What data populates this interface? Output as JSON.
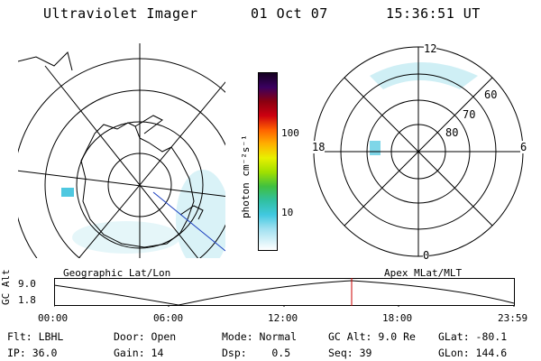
{
  "header": {
    "title": "Ultraviolet Imager",
    "date": "01 Oct 07",
    "time": "15:36:51 UT"
  },
  "colorbar": {
    "unit_label": "photon cm⁻²s⁻¹",
    "ticks": [
      "100",
      "10"
    ]
  },
  "right_map": {
    "mlt_labels": {
      "top": "12",
      "left": "18",
      "right": "6",
      "bottom": "0"
    },
    "lat_labels": [
      "60",
      "70",
      "80"
    ]
  },
  "timeline": {
    "left_title": "Geographic Lat/Lon",
    "right_title": "Apex MLat/MLT",
    "axis_label": "GC Alt",
    "y_ticks": [
      "9.0",
      "1.8"
    ],
    "x_ticks": [
      "00:00",
      "06:00",
      "12:00",
      "18:00",
      "23:59"
    ],
    "marker_color": "#cc0000"
  },
  "info": {
    "col1": [
      "Flt: LBHL",
      "IP: 36.0"
    ],
    "col2": [
      "Door: Open",
      "Gain: 14"
    ],
    "col3": [
      "Mode: Normal",
      "Dsp:    0.5"
    ],
    "col4": [
      "GC Alt: 9.0 Re",
      "Seq: 39"
    ],
    "col5": [
      "GLat: -80.1",
      "GLon: 144.6"
    ]
  }
}
